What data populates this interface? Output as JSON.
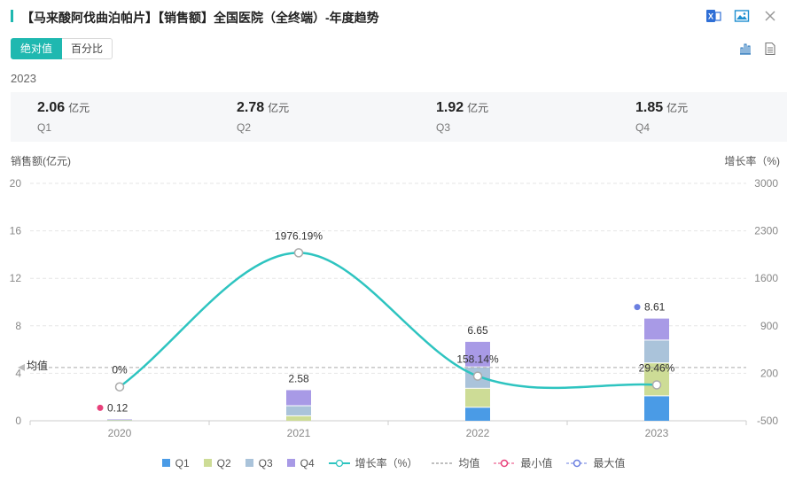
{
  "header": {
    "title": "【马来酸阿伐曲泊帕片】【销售额】全国医院（全终端）-年度趋势"
  },
  "toggle": {
    "absolute_label": "绝对值",
    "percent_label": "百分比"
  },
  "year": "2023",
  "summary": [
    {
      "value": "2.06",
      "unit": "亿元",
      "quarter": "Q1"
    },
    {
      "value": "2.78",
      "unit": "亿元",
      "quarter": "Q2"
    },
    {
      "value": "1.92",
      "unit": "亿元",
      "quarter": "Q3"
    },
    {
      "value": "1.85",
      "unit": "亿元",
      "quarter": "Q4"
    }
  ],
  "axes": {
    "left_title": "销售额(亿元)",
    "right_title": "增长率（%)"
  },
  "colors": {
    "accent": "#1fb8b0",
    "q1": "#4a9be6",
    "q2": "#cddc96",
    "q3": "#aac3da",
    "q4": "#a89ae6",
    "growth": "#2ec4c0",
    "min": "#e8407a",
    "max": "#6b7fe0"
  },
  "legend": {
    "q1": "Q1",
    "q2": "Q2",
    "q3": "Q3",
    "q4": "Q4",
    "growth": "增长率（%）",
    "mean": "均值",
    "min": "最小值",
    "max": "最大值"
  },
  "chart_data": {
    "type": "bar",
    "categories": [
      "2020",
      "2021",
      "2022",
      "2023"
    ],
    "series": [
      {
        "name": "Q1",
        "values": [
          0,
          0,
          1.1,
          2.06
        ]
      },
      {
        "name": "Q2",
        "values": [
          0.05,
          0.38,
          1.6,
          2.78
        ]
      },
      {
        "name": "Q3",
        "values": [
          0.03,
          0.85,
          1.8,
          1.92
        ]
      },
      {
        "name": "Q4",
        "values": [
          0.04,
          1.35,
          2.15,
          1.85
        ]
      }
    ],
    "totals": [
      0.12,
      2.58,
      6.65,
      8.61
    ],
    "total_labels": [
      "0.12",
      "2.58",
      "6.65",
      "8.61"
    ],
    "growth": {
      "name": "增长率（%）",
      "values": [
        0,
        1976.19,
        158.14,
        29.46
      ],
      "labels": [
        "0%",
        "1976.19%",
        "158.14%",
        "29.46%"
      ]
    },
    "mean": {
      "label": "均值",
      "value": 4.49
    },
    "min": {
      "category": "2020",
      "value": 0.12
    },
    "max": {
      "category": "2023",
      "value": 8.61
    },
    "ylim": [
      0,
      20
    ],
    "y_ticks": [
      "0",
      "4",
      "8",
      "12",
      "16",
      "20"
    ],
    "y2lim": [
      -500,
      3000
    ],
    "y2_ticks": [
      "-500",
      "200",
      "900",
      "1600",
      "2300",
      "3000"
    ],
    "ylabel": "销售额(亿元)",
    "y2label": "增长率（%)",
    "grid": true,
    "legend_position": "bottom"
  }
}
